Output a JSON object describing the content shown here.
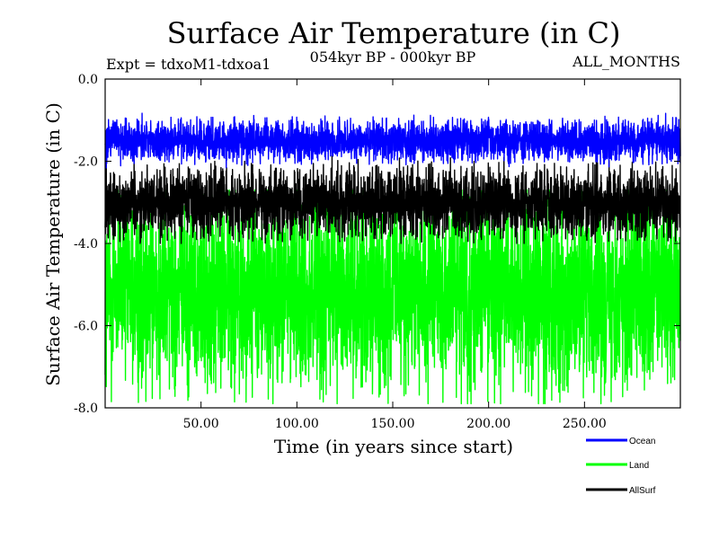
{
  "chart_data": {
    "type": "line",
    "title": "Surface Air Temperature (in C)",
    "subtitle_left": "Expt = tdxoM1-tdxoa1",
    "subtitle_center": "054kyr BP - 000kyr BP",
    "subtitle_right": "ALL_MONTHS",
    "xlabel": "Time (in years since start)",
    "ylabel": "Surface Air Temperature (in C)",
    "xlim": [
      0,
      300
    ],
    "ylim": [
      -8.0,
      0.0
    ],
    "x_ticks": [
      50,
      100,
      150,
      200,
      250
    ],
    "x_tick_labels": [
      "50.00",
      "100.00",
      "150.00",
      "200.00",
      "250.00"
    ],
    "y_ticks": [
      0,
      -2,
      -4,
      -6,
      -8
    ],
    "y_tick_labels": [
      "0.0",
      "-2.0",
      "-4.0",
      "-6.0",
      "-8.0"
    ],
    "legend_position": "bottom-right outside",
    "samples_per_year": 12,
    "series": [
      {
        "name": "Land",
        "color": "#00ff00",
        "mean": -5.2,
        "half_range": 2.1,
        "min": -7.9,
        "max": -2.7
      },
      {
        "name": "AllSurf",
        "color": "#000000",
        "mean": -3.0,
        "half_range": 0.75,
        "min": -4.0,
        "max": -1.7
      },
      {
        "name": "Ocean",
        "color": "#0000ff",
        "mean": -1.5,
        "half_range": 0.45,
        "min": -2.3,
        "max": -0.7
      }
    ],
    "legend": [
      {
        "name": "Ocean",
        "color": "#0000ff"
      },
      {
        "name": "Land",
        "color": "#00ff00"
      },
      {
        "name": "AllSurf",
        "color": "#000000"
      }
    ]
  }
}
